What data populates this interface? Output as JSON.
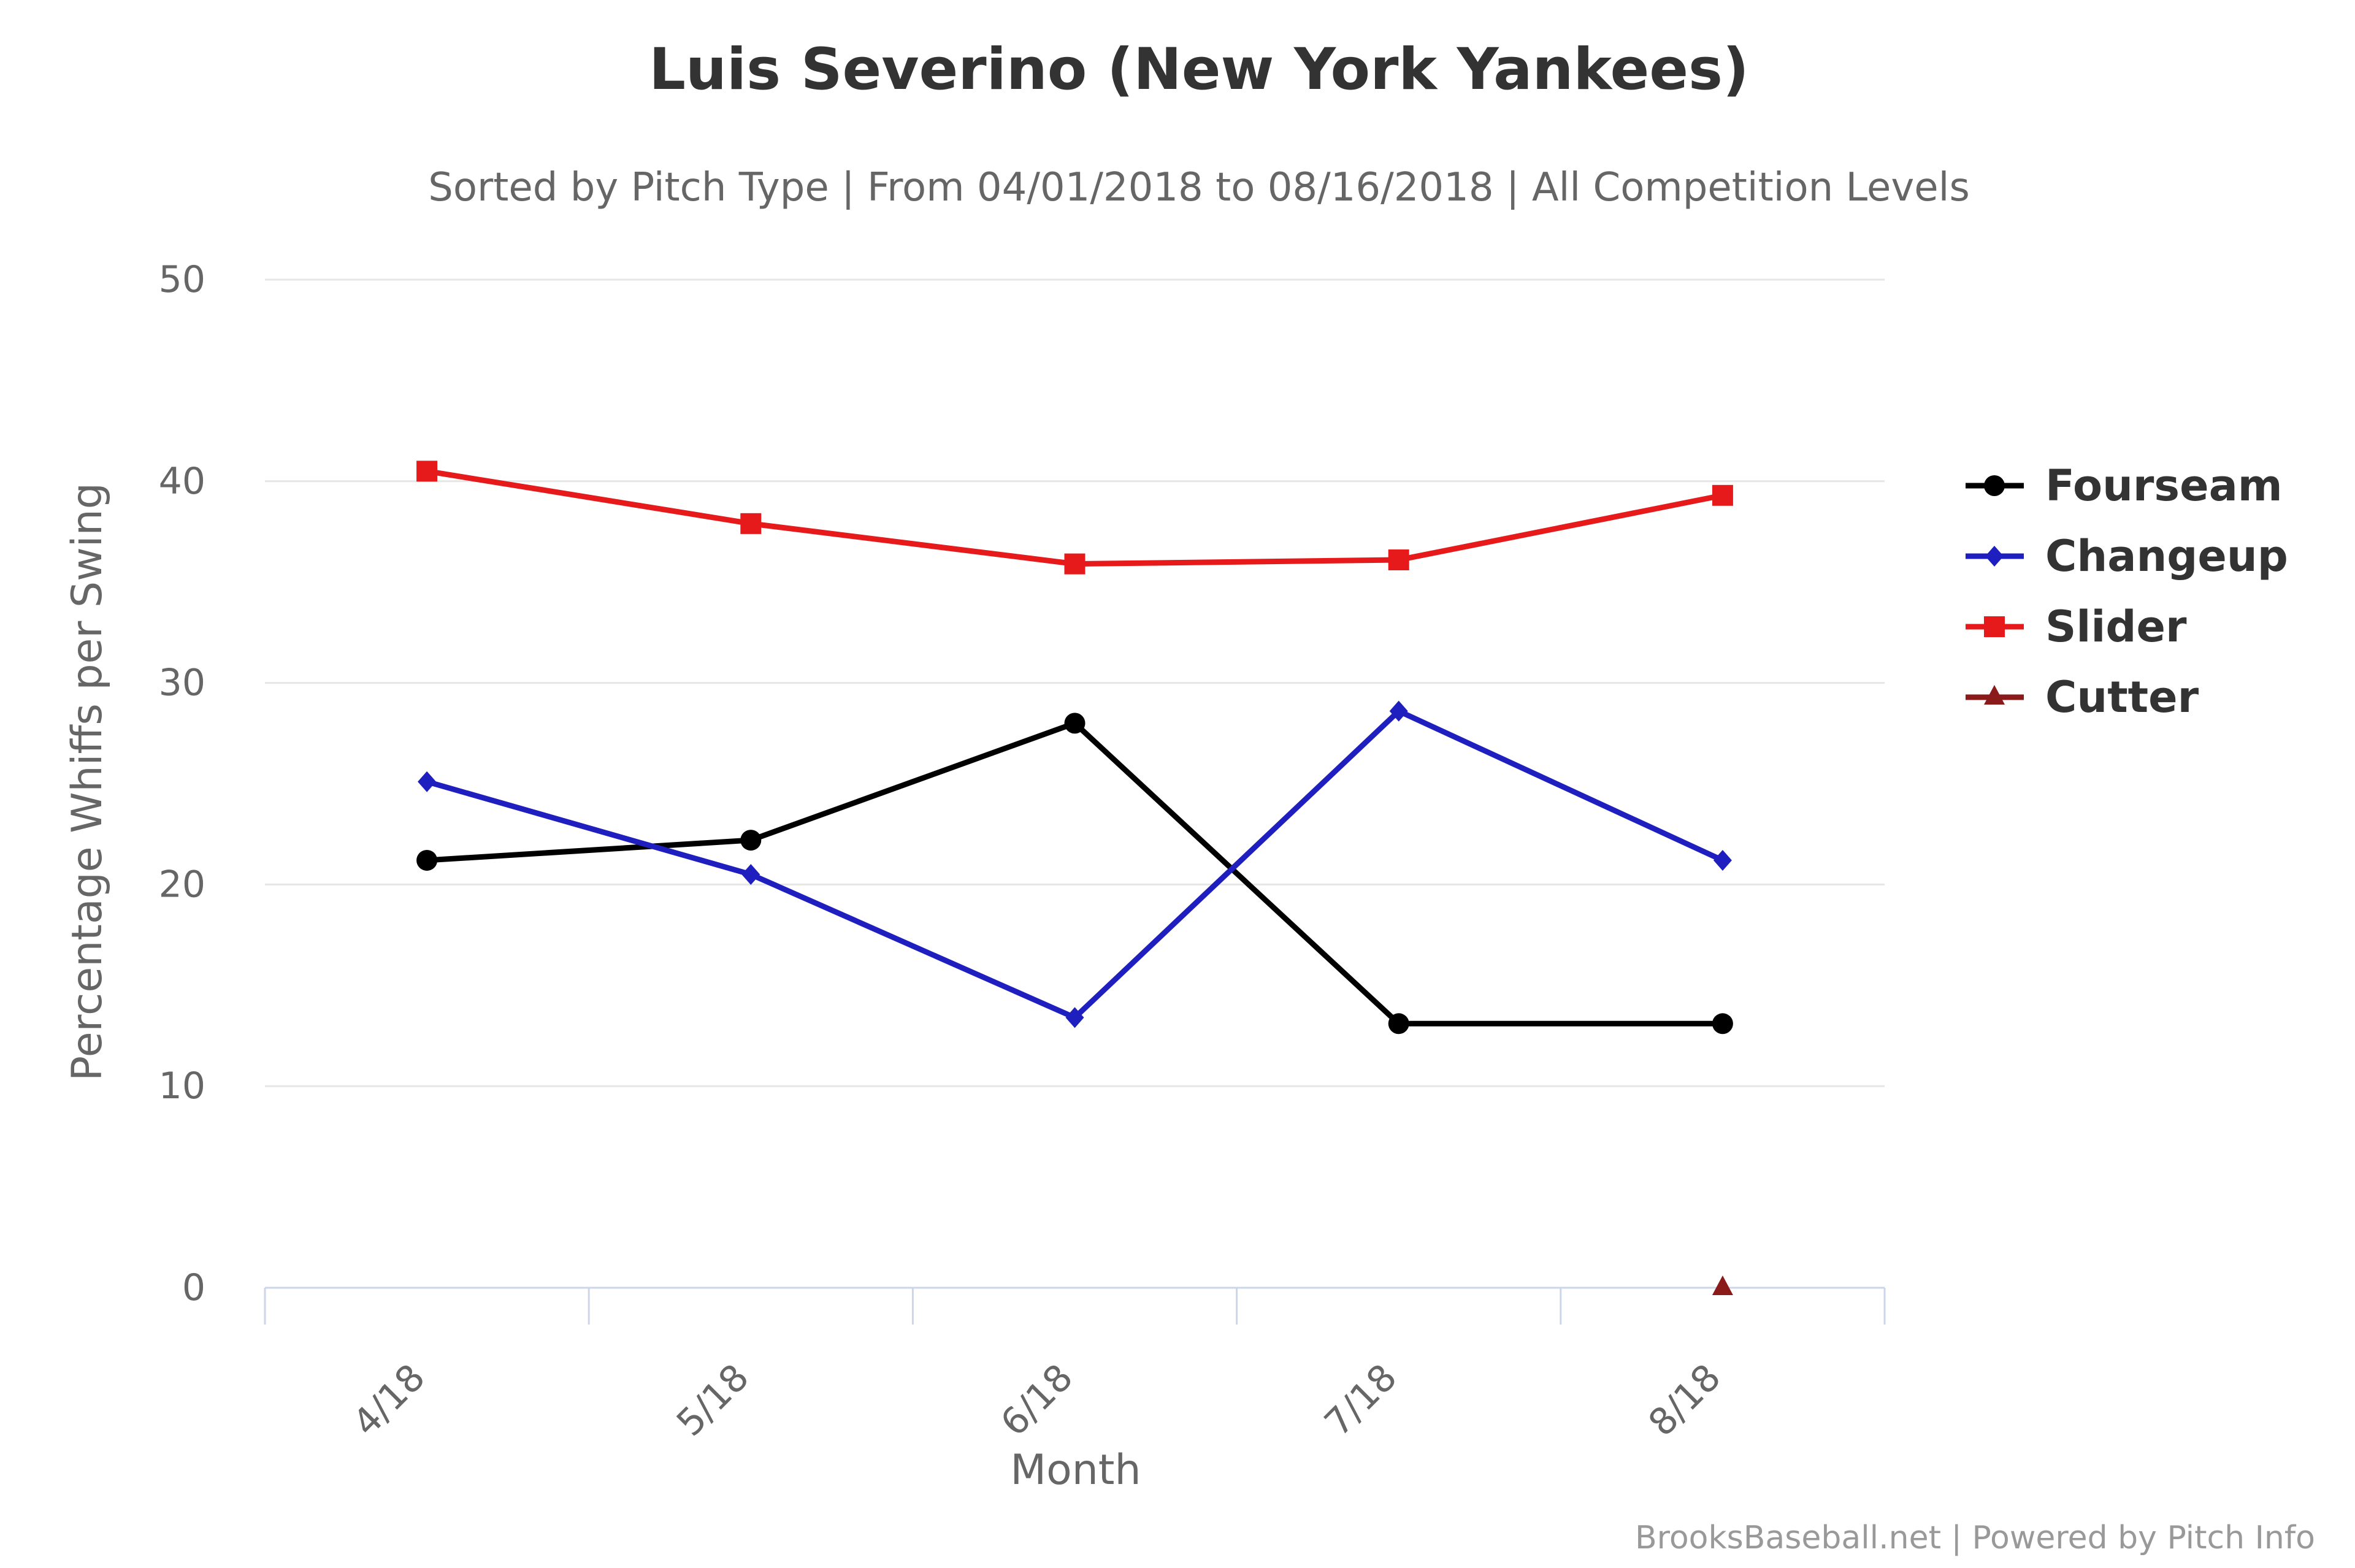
{
  "chart_data": {
    "type": "line",
    "title": "Luis Severino (New York Yankees)",
    "subtitle": "Sorted by Pitch Type | From 04/01/2018 to 08/16/2018 | All Competition Levels",
    "xlabel": "Month",
    "ylabel": "Percentage Whiffs per Swing",
    "categories": [
      "4/18",
      "5/18",
      "6/18",
      "7/18",
      "8/18"
    ],
    "ylim": [
      0,
      50
    ],
    "yticks": [
      0,
      10,
      20,
      30,
      40,
      50
    ],
    "grid": true,
    "legend_position": "right",
    "series": [
      {
        "name": "Fourseam",
        "color": "#000000",
        "marker": "circle",
        "values": [
          21.2,
          22.2,
          28.0,
          13.1,
          13.1
        ]
      },
      {
        "name": "Changeup",
        "color": "#1f1fbf",
        "marker": "diamond",
        "values": [
          25.1,
          20.5,
          13.4,
          28.6,
          21.2
        ]
      },
      {
        "name": "Slider",
        "color": "#e61a1a",
        "marker": "square",
        "values": [
          40.5,
          37.9,
          35.9,
          36.1,
          39.3
        ]
      },
      {
        "name": "Cutter",
        "color": "#8b1a1a",
        "marker": "triangle",
        "values": [
          null,
          null,
          null,
          null,
          0
        ]
      }
    ],
    "credits": "BrooksBaseball.net | Powered by Pitch Info"
  }
}
